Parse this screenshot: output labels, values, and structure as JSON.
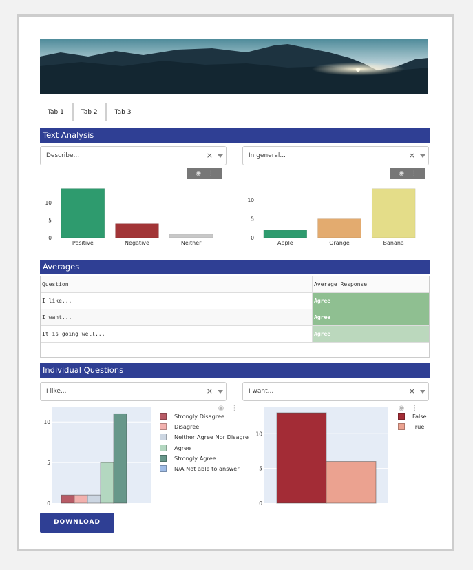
{
  "tabs": [
    "Tab 1",
    "Tab 2",
    "Tab 3"
  ],
  "sections": {
    "text_analysis": "Text Analysis",
    "averages": "Averages",
    "individual": "Individual Questions"
  },
  "dropdowns": {
    "describe": "Describe...",
    "in_general": "In general...",
    "i_like": "I like...",
    "i_want": "I want..."
  },
  "icons": {
    "clear": "×",
    "camera": "camera-icon",
    "plotly": "plotly-logo-icon"
  },
  "table": {
    "headers": [
      "Question",
      "Average Response"
    ],
    "rows": [
      {
        "question": "I like...",
        "response": "Agree",
        "color": "#8fbf91"
      },
      {
        "question": "I want...",
        "response": "Agree",
        "color": "#8fbf91"
      },
      {
        "question": "It is going well...",
        "response": "Agree",
        "color": "#bbd8bd"
      }
    ]
  },
  "download_label": "DOWNLOAD",
  "colors": {
    "accent": "#2f3f94",
    "green": "#2e9b6e",
    "red": "#a23537",
    "gray": "#c8c8c8",
    "orange": "#e3ab6f",
    "yellow": "#e4dd89"
  },
  "chart_data": [
    {
      "type": "bar",
      "categories": [
        "Positive",
        "Negative",
        "Neither"
      ],
      "values": [
        14,
        4,
        1
      ],
      "colors": [
        "#2e9b6e",
        "#a23537",
        "#c8c8c8"
      ],
      "yticks": [
        0,
        5,
        10
      ],
      "ylim": [
        0,
        14.5
      ]
    },
    {
      "type": "bar",
      "categories": [
        "Apple",
        "Orange",
        "Banana"
      ],
      "values": [
        2,
        5,
        13
      ],
      "colors": [
        "#2e9b6e",
        "#e3ab6f",
        "#e4dd89"
      ],
      "yticks": [
        0,
        5,
        10
      ],
      "ylim": [
        0,
        13.5
      ]
    },
    {
      "type": "bar",
      "series": [
        {
          "name": "Strongly Disagree",
          "values": [
            1
          ],
          "color": "#b75b66"
        },
        {
          "name": "Disagree",
          "values": [
            1
          ],
          "color": "#f2b1ae"
        },
        {
          "name": "Neither Agree Nor Disagre",
          "values": [
            1
          ],
          "color": "#ccd6e2"
        },
        {
          "name": "Agree",
          "values": [
            5
          ],
          "color": "#b3d7c0"
        },
        {
          "name": "Strongly Agree",
          "values": [
            11
          ],
          "color": "#67978a"
        },
        {
          "name": "N/A Not able to answer",
          "values": [
            0
          ],
          "color": "#9fbce6"
        }
      ],
      "yticks": [
        0,
        5,
        10
      ],
      "ylim": [
        0,
        11.8
      ],
      "legend": "right"
    },
    {
      "type": "bar",
      "series": [
        {
          "name": "False",
          "values": [
            13
          ],
          "color": "#a32c36"
        },
        {
          "name": "True",
          "values": [
            6
          ],
          "color": "#eba290"
        }
      ],
      "yticks": [
        0,
        5,
        10
      ],
      "ylim": [
        0,
        13.8
      ],
      "legend": "right"
    }
  ]
}
